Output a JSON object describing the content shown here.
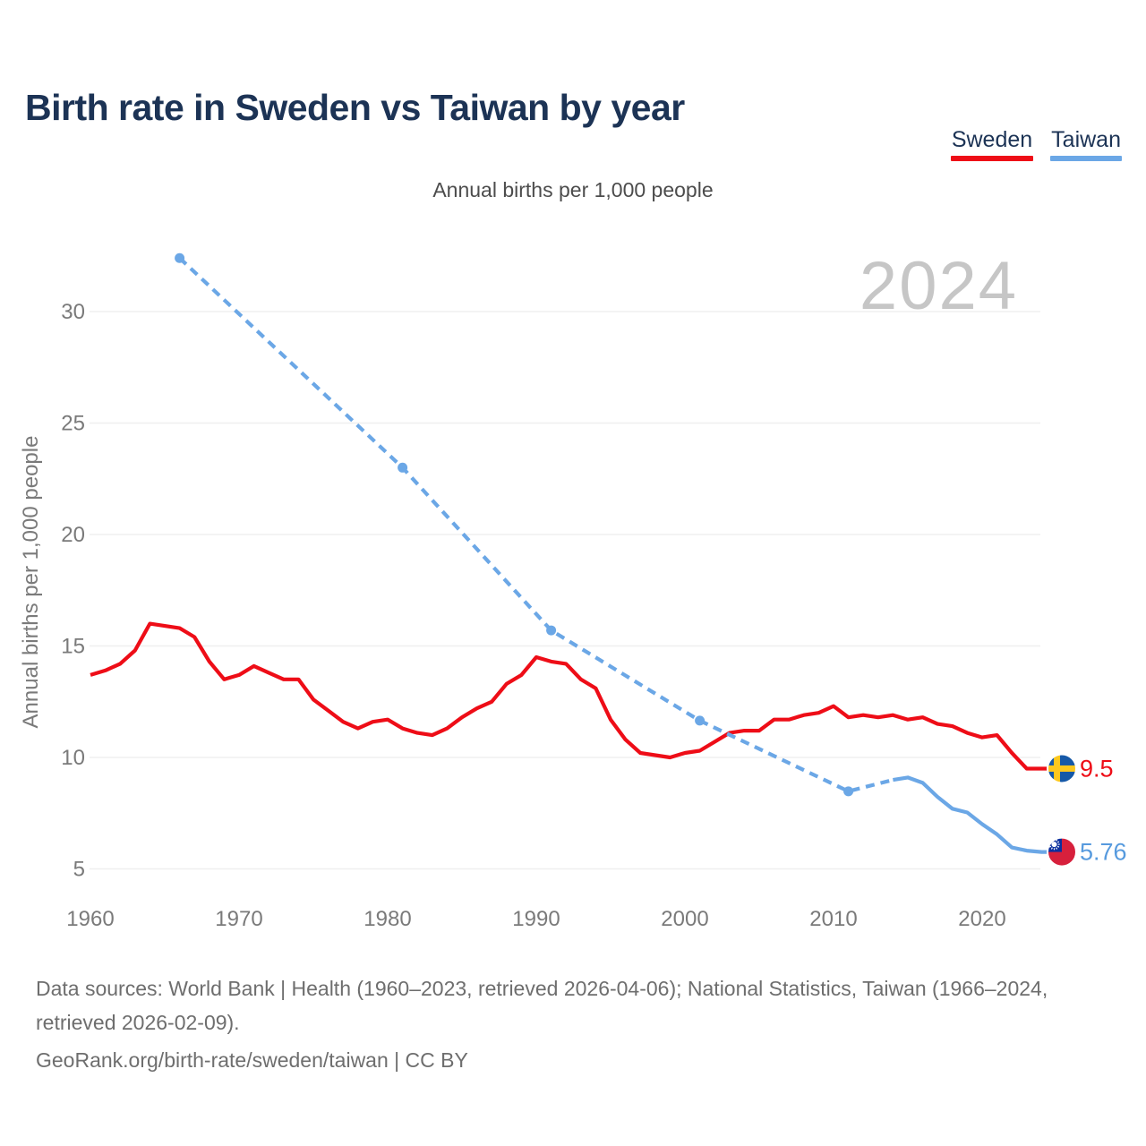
{
  "title": "Birth rate in Sweden vs Taiwan by year",
  "subtitle": "Annual births per 1,000 people",
  "legend": {
    "items": [
      {
        "label": "Sweden",
        "color": "#ee0d17"
      },
      {
        "label": "Taiwan",
        "color": "#6ba7e6"
      }
    ]
  },
  "watermark": "2024",
  "footer": {
    "sources": "Data sources: World Bank | Health (1960–2023, retrieved 2026-04-06); National Statistics, Taiwan (1966–2024, retrieved 2026-02-09).",
    "attribution": "GeoRank.org/birth-rate/sweden/taiwan | CC BY"
  },
  "chart_data": {
    "type": "line",
    "title": "Birth rate in Sweden vs Taiwan by year",
    "subtitle": "Annual births per 1,000 people",
    "xlabel": "",
    "ylabel": "Annual births per 1,000 people",
    "x_ticks": [
      1960,
      1970,
      1980,
      1990,
      2000,
      2010,
      2020
    ],
    "y_ticks": [
      5,
      10,
      15,
      20,
      25,
      30
    ],
    "xlim": [
      1960,
      2024
    ],
    "ylim": [
      5,
      30
    ],
    "grid": "horizontal",
    "legend_position": "top-right",
    "watermark_year": "2024",
    "colors": {
      "sweden": "#ee0d17",
      "taiwan": "#6ba7e6",
      "taiwan_label": "#569ade",
      "grid": "#efefef",
      "ticks": "#7a7a7a",
      "watermark": "#c6c6c6"
    },
    "flags": {
      "sweden": {
        "field": "#1659a8",
        "cross": "#fdc81e"
      },
      "taiwan": {
        "field": "#d7203c",
        "canton": "#0b2f9e",
        "sun": "#ffffff"
      }
    },
    "series": [
      {
        "name": "Sweden",
        "style": "solid",
        "color_key": "sweden",
        "year_start": 1960,
        "values": [
          13.7,
          13.9,
          14.2,
          14.8,
          16.0,
          15.9,
          15.8,
          15.4,
          14.3,
          13.5,
          13.7,
          14.1,
          13.8,
          13.5,
          13.5,
          12.6,
          12.1,
          11.6,
          11.3,
          11.6,
          11.7,
          11.3,
          11.1,
          11.0,
          11.3,
          11.8,
          12.2,
          12.5,
          13.3,
          13.7,
          14.5,
          14.3,
          14.2,
          13.5,
          13.1,
          11.7,
          10.8,
          10.2,
          10.1,
          10.0,
          10.2,
          10.3,
          10.7,
          11.1,
          11.2,
          11.2,
          11.7,
          11.7,
          11.9,
          12.0,
          12.3,
          11.8,
          11.9,
          11.8,
          11.9,
          11.7,
          11.8,
          11.5,
          11.4,
          11.1,
          10.9,
          11.0,
          10.2,
          9.5
        ],
        "end_label": "9.5"
      },
      {
        "name": "Taiwan interpolated",
        "style": "dashed",
        "color_key": "taiwan",
        "points": [
          [
            1966,
            32.4
          ],
          [
            1981,
            23.0
          ],
          [
            1991,
            15.7
          ],
          [
            2001,
            11.65
          ],
          [
            2011,
            8.48
          ],
          [
            2014,
            8.99
          ]
        ],
        "marker_years": [
          1966,
          1981,
          1991,
          2001,
          2011
        ]
      },
      {
        "name": "Taiwan",
        "style": "solid",
        "color_key": "taiwan",
        "year_start": 2014,
        "values": [
          8.99,
          9.1,
          8.86,
          8.23,
          7.7,
          7.53,
          7.01,
          6.55,
          5.96,
          5.82,
          5.76
        ],
        "end_label": "5.76"
      }
    ],
    "end_markers": [
      {
        "series": "Sweden",
        "flag": "sweden-flag",
        "label": "9.5",
        "value": 9.5,
        "label_color_key": "sweden"
      },
      {
        "series": "Taiwan",
        "flag": "taiwan-flag",
        "label": "5.76",
        "value": 5.76,
        "label_color_key": "taiwan_label"
      }
    ]
  }
}
